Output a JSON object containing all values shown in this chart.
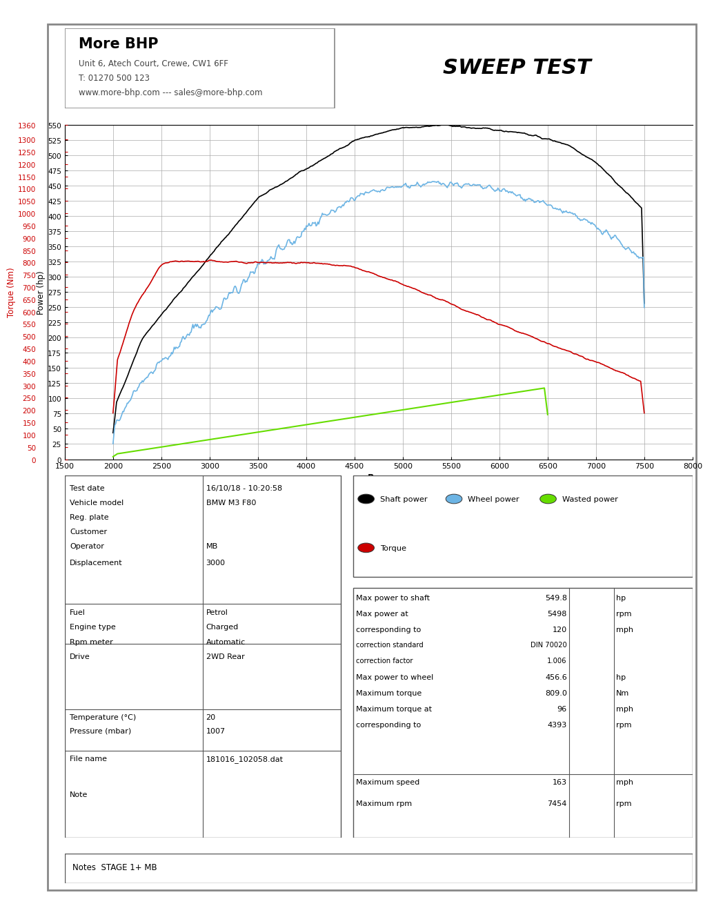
{
  "title": "SWEEP TEST",
  "company": "More BHP",
  "address": "Unit 6, Atech Court, Crewe, CW1 6FF",
  "phone": "T: 01270 500 123",
  "website": "www.more-bhp.com --- sales@more-bhp.com",
  "rpm_min": 1500,
  "rpm_max": 8000,
  "power_min": 0,
  "power_max": 550,
  "power_ticks": [
    0,
    25,
    50,
    75,
    100,
    125,
    150,
    175,
    200,
    225,
    250,
    275,
    300,
    325,
    350,
    375,
    400,
    425,
    450,
    475,
    500,
    525,
    550
  ],
  "torque_min": 0,
  "torque_max": 1360,
  "torque_ticks": [
    0,
    50,
    100,
    150,
    200,
    250,
    300,
    350,
    400,
    450,
    500,
    550,
    600,
    650,
    700,
    750,
    800,
    850,
    900,
    950,
    1000,
    1050,
    1100,
    1150,
    1200,
    1250,
    1300,
    1360
  ],
  "rpm_ticks": [
    1500,
    2000,
    2500,
    3000,
    3500,
    4000,
    4500,
    5000,
    5500,
    6000,
    6500,
    7000,
    7500,
    8000
  ],
  "shaft_color": "#000000",
  "wheel_color": "#6cb4e4",
  "wasted_color": "#66dd00",
  "torque_color": "#cc0000",
  "grid_color": "#aaaaaa",
  "bg_color": "#ffffff",
  "notes_text": "Notes  STAGE 1+ MB"
}
